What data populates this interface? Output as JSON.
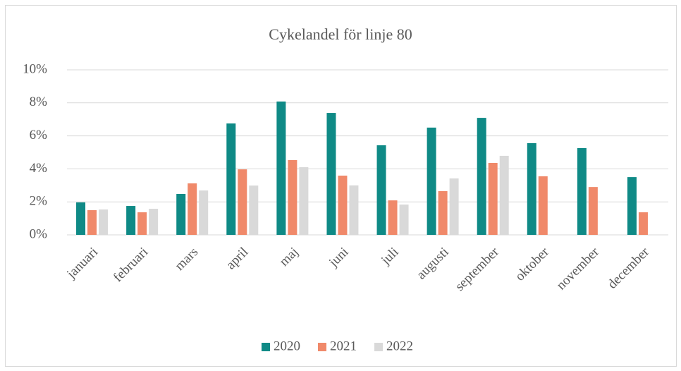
{
  "chart_data": {
    "type": "bar",
    "title": "Cykelandel för linje 80",
    "categories": [
      "januari",
      "februari",
      "mars",
      "april",
      "maj",
      "juni",
      "juli",
      "augusti",
      "september",
      "oktober",
      "november",
      "december"
    ],
    "series": [
      {
        "name": "2020",
        "color": "#0f8a86",
        "values": [
          1.97,
          1.75,
          2.48,
          6.75,
          8.08,
          7.39,
          5.43,
          6.5,
          7.09,
          5.56,
          5.26,
          3.5
        ]
      },
      {
        "name": "2021",
        "color": "#f0896a",
        "values": [
          1.5,
          1.37,
          3.12,
          3.97,
          4.53,
          3.59,
          2.09,
          2.65,
          4.36,
          3.55,
          2.9,
          1.37
        ]
      },
      {
        "name": "2022",
        "color": "#d9d9d9",
        "values": [
          1.54,
          1.58,
          2.69,
          2.99,
          4.1,
          3.0,
          1.84,
          3.42,
          4.79,
          null,
          null,
          null
        ]
      }
    ],
    "ylim": [
      0,
      10
    ],
    "yticks": [
      {
        "value": 0,
        "label": "0%"
      },
      {
        "value": 2,
        "label": "2%"
      },
      {
        "value": 4,
        "label": "4%"
      },
      {
        "value": 6,
        "label": "6%"
      },
      {
        "value": 8,
        "label": "8%"
      },
      {
        "value": 10,
        "label": "10%"
      }
    ],
    "grid": true,
    "legend": "bottom"
  }
}
